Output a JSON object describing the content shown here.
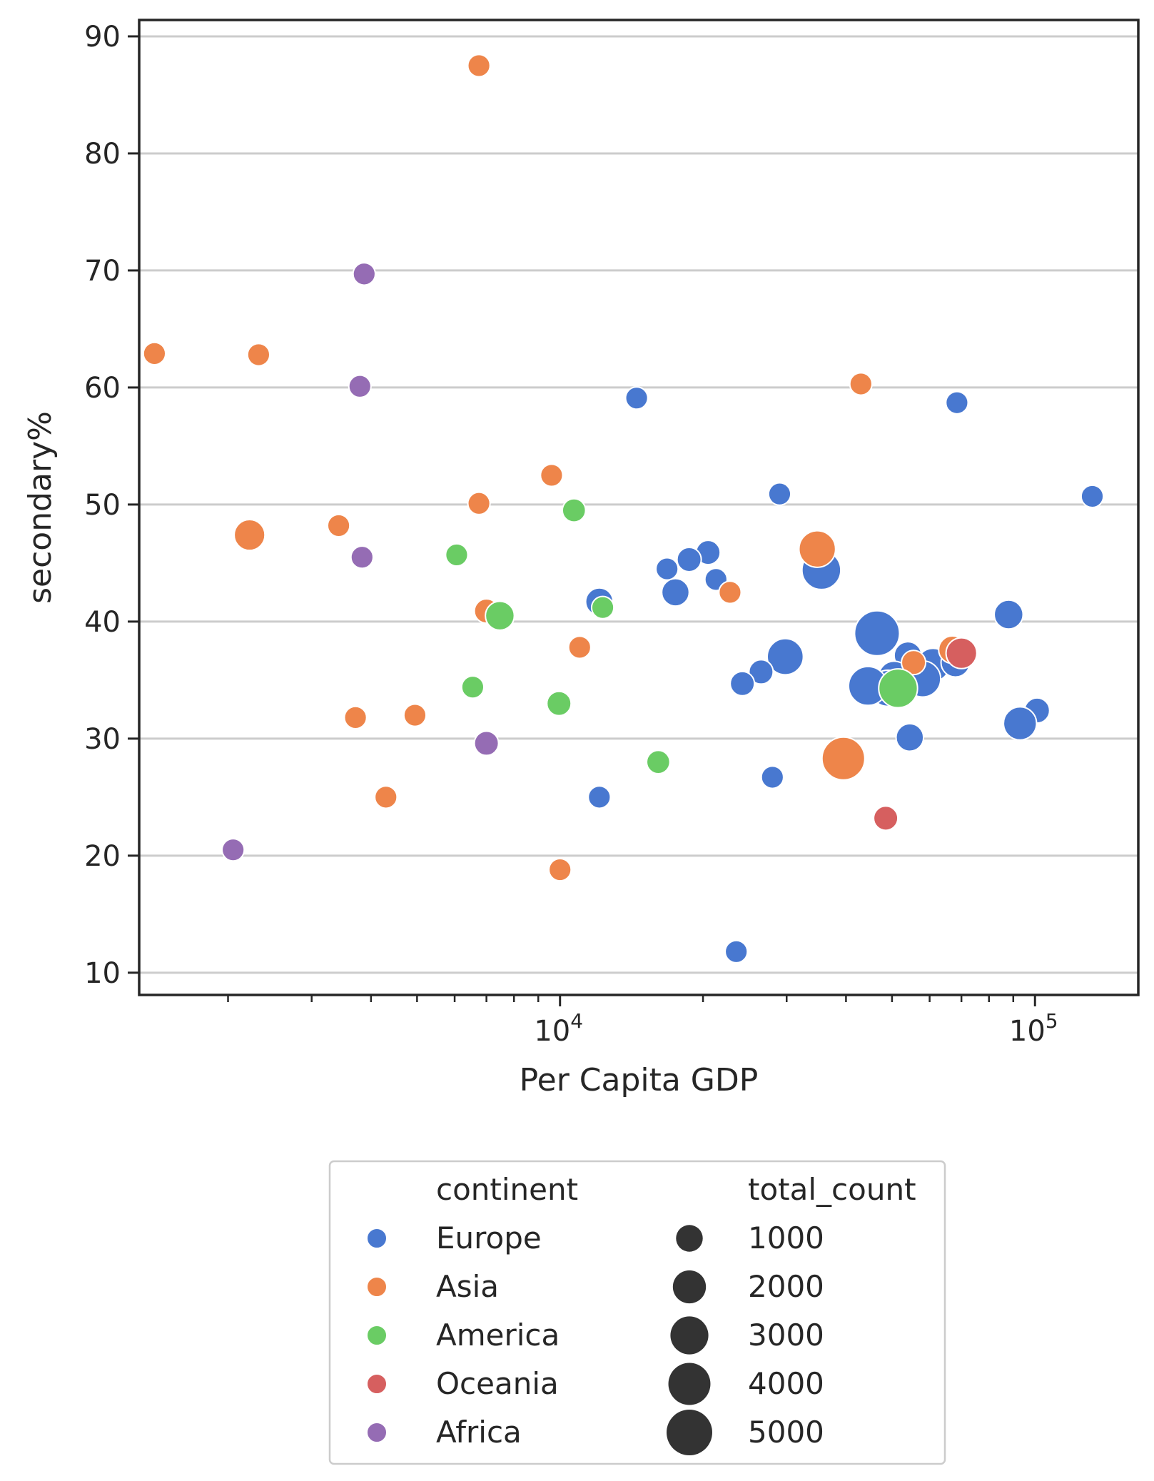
{
  "chart_data": {
    "type": "scatter",
    "xlabel": "Per Capita GDP",
    "ylabel": "secondary%",
    "x_scale": "log",
    "xlim": [
      1300,
      165000
    ],
    "ylim": [
      8.1,
      91.4
    ],
    "y_ticks": [
      10,
      20,
      30,
      40,
      50,
      60,
      70,
      80,
      90
    ],
    "x_major_ticks": [
      {
        "value": 10000,
        "base": "10",
        "exp": "4"
      },
      {
        "value": 100000,
        "base": "10",
        "exp": "5"
      }
    ],
    "x_minor_ticks": [
      2000,
      3000,
      4000,
      5000,
      6000,
      7000,
      8000,
      9000,
      20000,
      30000,
      40000,
      50000,
      60000,
      70000,
      80000,
      90000
    ],
    "grid": "horizontal",
    "legend": {
      "placement": "bottom-center",
      "hue_title": "continent",
      "size_title": "total_count",
      "hue_entries": [
        {
          "label": "Europe",
          "color": "#4878d0"
        },
        {
          "label": "Asia",
          "color": "#ee854a"
        },
        {
          "label": "America",
          "color": "#6acc64"
        },
        {
          "label": "Oceania",
          "color": "#d65f5f"
        },
        {
          "label": "Africa",
          "color": "#956cb4"
        }
      ],
      "size_entries": [
        {
          "label": "1000",
          "value": 1000
        },
        {
          "label": "2000",
          "value": 2000
        },
        {
          "label": "3000",
          "value": 3000
        },
        {
          "label": "4000",
          "value": 4000
        },
        {
          "label": "5000",
          "value": 5000
        }
      ]
    },
    "series": [
      {
        "name": "Europe",
        "color": "#4878d0",
        "points": [
          {
            "x": 14500,
            "y": 59.1,
            "size": 500
          },
          {
            "x": 68500,
            "y": 58.7,
            "size": 500
          },
          {
            "x": 29000,
            "y": 50.9,
            "size": 500
          },
          {
            "x": 132000,
            "y": 50.7,
            "size": 500
          },
          {
            "x": 20500,
            "y": 45.9,
            "size": 700
          },
          {
            "x": 18700,
            "y": 45.3,
            "size": 700
          },
          {
            "x": 16800,
            "y": 44.5,
            "size": 500
          },
          {
            "x": 35500,
            "y": 44.4,
            "size": 3200
          },
          {
            "x": 21300,
            "y": 43.6,
            "size": 500
          },
          {
            "x": 17500,
            "y": 42.5,
            "size": 1100
          },
          {
            "x": 12100,
            "y": 41.7,
            "size": 1100
          },
          {
            "x": 88000,
            "y": 40.6,
            "size": 1300
          },
          {
            "x": 46500,
            "y": 39.0,
            "size": 4800
          },
          {
            "x": 29800,
            "y": 37.0,
            "size": 2600
          },
          {
            "x": 54000,
            "y": 37.1,
            "size": 1100
          },
          {
            "x": 61000,
            "y": 36.3,
            "size": 2000
          },
          {
            "x": 68000,
            "y": 36.5,
            "size": 1300
          },
          {
            "x": 26500,
            "y": 35.7,
            "size": 700
          },
          {
            "x": 58000,
            "y": 35.1,
            "size": 2600
          },
          {
            "x": 50500,
            "y": 35.3,
            "size": 1600
          },
          {
            "x": 49000,
            "y": 34.3,
            "size": 2600
          },
          {
            "x": 44500,
            "y": 34.5,
            "size": 3200
          },
          {
            "x": 24200,
            "y": 34.7,
            "size": 700
          },
          {
            "x": 101000,
            "y": 32.4,
            "size": 800
          },
          {
            "x": 93000,
            "y": 31.3,
            "size": 2000
          },
          {
            "x": 54500,
            "y": 30.1,
            "size": 1100
          },
          {
            "x": 28000,
            "y": 26.7,
            "size": 500
          },
          {
            "x": 12100,
            "y": 25.0,
            "size": 500
          },
          {
            "x": 23500,
            "y": 11.8,
            "size": 500
          }
        ]
      },
      {
        "name": "Asia",
        "color": "#ee854a",
        "points": [
          {
            "x": 6750,
            "y": 87.5,
            "size": 500
          },
          {
            "x": 1400,
            "y": 62.9,
            "size": 500
          },
          {
            "x": 2320,
            "y": 62.8,
            "size": 500
          },
          {
            "x": 43000,
            "y": 60.3,
            "size": 500
          },
          {
            "x": 9600,
            "y": 52.5,
            "size": 500
          },
          {
            "x": 6750,
            "y": 50.1,
            "size": 500
          },
          {
            "x": 3420,
            "y": 48.2,
            "size": 500
          },
          {
            "x": 2220,
            "y": 47.4,
            "size": 1600
          },
          {
            "x": 34800,
            "y": 46.2,
            "size": 2700
          },
          {
            "x": 22800,
            "y": 42.5,
            "size": 500
          },
          {
            "x": 7000,
            "y": 40.9,
            "size": 700
          },
          {
            "x": 11000,
            "y": 37.8,
            "size": 500
          },
          {
            "x": 67000,
            "y": 37.6,
            "size": 1100
          },
          {
            "x": 55500,
            "y": 36.5,
            "size": 700
          },
          {
            "x": 3710,
            "y": 31.8,
            "size": 500
          },
          {
            "x": 4950,
            "y": 32.0,
            "size": 500
          },
          {
            "x": 39500,
            "y": 28.3,
            "size": 4200
          },
          {
            "x": 4300,
            "y": 25.0,
            "size": 500
          },
          {
            "x": 10000,
            "y": 18.8,
            "size": 500
          }
        ]
      },
      {
        "name": "America",
        "color": "#6acc64",
        "points": [
          {
            "x": 10700,
            "y": 49.5,
            "size": 600
          },
          {
            "x": 6060,
            "y": 45.7,
            "size": 500
          },
          {
            "x": 7470,
            "y": 40.5,
            "size": 1300
          },
          {
            "x": 12300,
            "y": 41.2,
            "size": 500
          },
          {
            "x": 51500,
            "y": 34.3,
            "size": 3200
          },
          {
            "x": 6550,
            "y": 34.4,
            "size": 500
          },
          {
            "x": 9950,
            "y": 33.0,
            "size": 700
          },
          {
            "x": 16100,
            "y": 28.0,
            "size": 600
          }
        ]
      },
      {
        "name": "Oceania",
        "color": "#d65f5f",
        "points": [
          {
            "x": 70000,
            "y": 37.3,
            "size": 1600
          },
          {
            "x": 48500,
            "y": 23.2,
            "size": 700
          }
        ]
      },
      {
        "name": "Africa",
        "color": "#956cb4",
        "points": [
          {
            "x": 3870,
            "y": 69.7,
            "size": 500
          },
          {
            "x": 3790,
            "y": 60.1,
            "size": 500
          },
          {
            "x": 3830,
            "y": 45.5,
            "size": 500
          },
          {
            "x": 7000,
            "y": 29.6,
            "size": 700
          },
          {
            "x": 2050,
            "y": 20.5,
            "size": 500
          }
        ]
      }
    ]
  }
}
